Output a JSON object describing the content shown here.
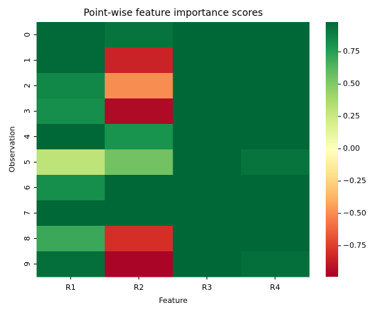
{
  "chart_data": {
    "type": "heatmap",
    "title": "Point-wise feature importance scores",
    "x_label": "Feature",
    "y_label": "Observation",
    "x_categories": [
      "R1",
      "R2",
      "R3",
      "R4"
    ],
    "y_categories": [
      "0",
      "1",
      "2",
      "3",
      "4",
      "5",
      "6",
      "7",
      "8",
      "9"
    ],
    "values": [
      [
        0.97,
        0.93,
        0.98,
        0.98
      ],
      [
        0.97,
        -0.85,
        0.98,
        0.98
      ],
      [
        0.85,
        -0.5,
        0.98,
        0.98
      ],
      [
        0.82,
        -0.95,
        0.98,
        0.98
      ],
      [
        0.98,
        0.8,
        0.98,
        0.98
      ],
      [
        0.3,
        0.55,
        0.98,
        0.93
      ],
      [
        0.82,
        0.98,
        0.98,
        0.98
      ],
      [
        0.98,
        0.98,
        0.98,
        0.98
      ],
      [
        0.7,
        -0.8,
        0.98,
        0.98
      ],
      [
        0.95,
        -0.97,
        0.98,
        0.95
      ]
    ],
    "colormap": "RdYlGn",
    "zlim": [
      -0.99,
      0.98
    ],
    "colorbar_ticks": [
      {
        "value": 0.75,
        "label": "0.75"
      },
      {
        "value": 0.5,
        "label": "0.50"
      },
      0.25,
      {
        "value": 0,
        "label": "0.00"
      },
      {
        "value": -0.25,
        "label": "−0.25"
      },
      {
        "value": -0.5,
        "label": "−0.50"
      },
      {
        "value": -0.75,
        "label": "−0.75"
      }
    ]
  }
}
